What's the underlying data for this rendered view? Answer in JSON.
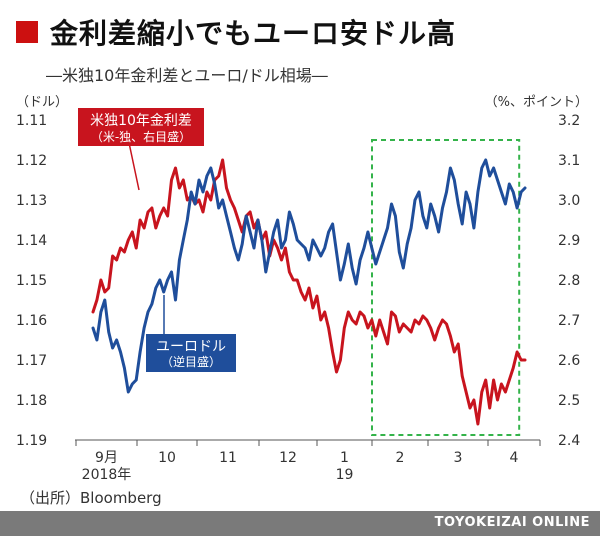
{
  "header": {
    "title": "金利差縮小でもユーロ安ドル高",
    "subtitle": "―米独10年金利差とユーロ/ドル相場―"
  },
  "footer": {
    "source": "（出所）Bloomberg",
    "brand": "TOYOKEIZAI ONLINE"
  },
  "colors": {
    "accent_red": "#cc1010",
    "series_red": "#c8141e",
    "series_blue": "#1f4e9b",
    "highlight_green": "#34b34a",
    "footer_gray": "#7a7a7a"
  },
  "chart_data": {
    "type": "line",
    "left_axis": {
      "unit_label": "（ドル）",
      "ticks": [
        "1.11",
        "1.12",
        "1.13",
        "1.14",
        "1.15",
        "1.16",
        "1.17",
        "1.18",
        "1.19"
      ],
      "range": [
        1.11,
        1.19
      ],
      "inverted": true
    },
    "right_axis": {
      "unit_label": "（%、ポイント）",
      "ticks": [
        "3.2",
        "3.1",
        "3.0",
        "2.9",
        "2.8",
        "2.7",
        "2.6",
        "2.5",
        "2.4"
      ],
      "range": [
        2.4,
        3.2
      ]
    },
    "x_axis": {
      "labels": [
        {
          "text": "9月",
          "sub": "2018年"
        },
        {
          "text": "10",
          "sub": ""
        },
        {
          "text": "11",
          "sub": ""
        },
        {
          "text": "12",
          "sub": ""
        },
        {
          "text": "1",
          "sub": "19"
        },
        {
          "text": "2",
          "sub": ""
        },
        {
          "text": "3",
          "sub": ""
        },
        {
          "text": "4",
          "sub": ""
        }
      ]
    },
    "highlight_region": {
      "from_month": 5,
      "to_month": 7.6,
      "style": "dashed-green"
    },
    "series": [
      {
        "name": "米独10年金利差",
        "sub": "（米-独、右目盛）",
        "axis": "right",
        "values": [
          2.72,
          2.75,
          2.8,
          2.77,
          2.78,
          2.86,
          2.85,
          2.88,
          2.87,
          2.9,
          2.92,
          2.88,
          2.95,
          2.93,
          2.97,
          2.98,
          2.93,
          2.96,
          2.98,
          2.96,
          3.05,
          3.08,
          3.03,
          3.05,
          3.0,
          3.01,
          2.99,
          3.0,
          2.97,
          3.02,
          3.0,
          3.05,
          3.06,
          3.1,
          3.03,
          3.0,
          2.98,
          2.95,
          2.92,
          2.96,
          2.97,
          2.93,
          2.95,
          2.9,
          2.92,
          2.86,
          2.9,
          2.88,
          2.85,
          2.88,
          2.82,
          2.8,
          2.8,
          2.77,
          2.75,
          2.78,
          2.73,
          2.76,
          2.7,
          2.72,
          2.68,
          2.62,
          2.57,
          2.6,
          2.68,
          2.72,
          2.7,
          2.69,
          2.72,
          2.71,
          2.68,
          2.7,
          2.66,
          2.7,
          2.67,
          2.64,
          2.72,
          2.71,
          2.67,
          2.69,
          2.68,
          2.67,
          2.7,
          2.69,
          2.71,
          2.7,
          2.68,
          2.65,
          2.68,
          2.7,
          2.69,
          2.66,
          2.62,
          2.64,
          2.56,
          2.52,
          2.48,
          2.5,
          2.44,
          2.52,
          2.55,
          2.48,
          2.55,
          2.5,
          2.54,
          2.52,
          2.55,
          2.58,
          2.62,
          2.6,
          2.6
        ]
      },
      {
        "name": "ユーロドル",
        "sub": "（逆目盛）",
        "axis": "left",
        "values": [
          1.162,
          1.165,
          1.158,
          1.155,
          1.163,
          1.167,
          1.165,
          1.168,
          1.172,
          1.178,
          1.176,
          1.175,
          1.168,
          1.162,
          1.158,
          1.156,
          1.152,
          1.15,
          1.153,
          1.15,
          1.148,
          1.155,
          1.145,
          1.14,
          1.135,
          1.128,
          1.131,
          1.125,
          1.128,
          1.124,
          1.122,
          1.126,
          1.132,
          1.13,
          1.134,
          1.138,
          1.142,
          1.145,
          1.141,
          1.134,
          1.138,
          1.142,
          1.135,
          1.14,
          1.148,
          1.143,
          1.138,
          1.135,
          1.142,
          1.14,
          1.133,
          1.136,
          1.14,
          1.141,
          1.142,
          1.145,
          1.14,
          1.142,
          1.144,
          1.142,
          1.138,
          1.136,
          1.143,
          1.15,
          1.146,
          1.141,
          1.147,
          1.151,
          1.145,
          1.142,
          1.138,
          1.142,
          1.146,
          1.143,
          1.14,
          1.137,
          1.131,
          1.134,
          1.143,
          1.147,
          1.141,
          1.137,
          1.13,
          1.128,
          1.134,
          1.137,
          1.131,
          1.134,
          1.138,
          1.132,
          1.128,
          1.122,
          1.125,
          1.131,
          1.136,
          1.128,
          1.131,
          1.137,
          1.128,
          1.122,
          1.12,
          1.124,
          1.122,
          1.125,
          1.128,
          1.131,
          1.126,
          1.128,
          1.132,
          1.128,
          1.127
        ]
      }
    ]
  }
}
